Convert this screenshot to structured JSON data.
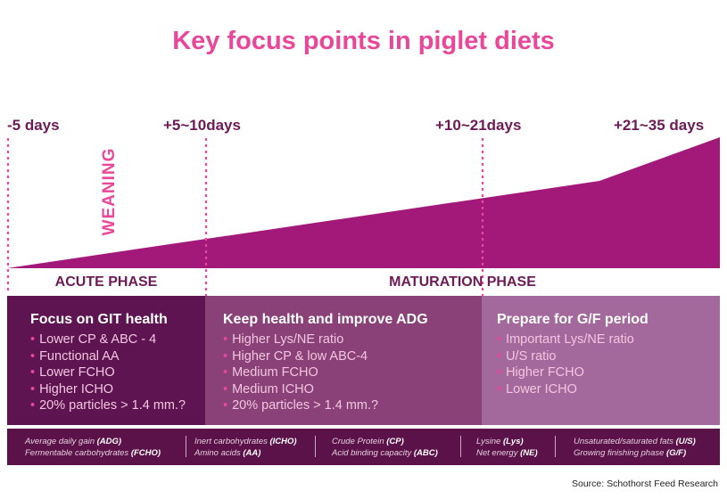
{
  "title": "Key focus points in piglet diets",
  "timeline": [
    "-5 days",
    "+5~10days",
    "+10~21days",
    "+21~35 days"
  ],
  "weaning_label": "WEANING",
  "phases": {
    "acute": "ACUTE PHASE",
    "maturation": "MATURATION PHASE"
  },
  "columns": [
    {
      "heading": "Focus on GIT health",
      "items": [
        "Lower CP & ABC - 4",
        "Functional AA",
        "Lower FCHO",
        "Higher ICHO",
        "20% particles > 1.4 mm.?"
      ]
    },
    {
      "heading": "Keep health and improve ADG",
      "items": [
        "Higher Lys/NE ratio",
        "Higher CP & low ABC-4",
        "Medium FCHO",
        "Medium ICHO",
        "20% particles > 1.4 mm.?"
      ]
    },
    {
      "heading": "Prepare for G/F period",
      "items": [
        "Important Lys/NE ratio",
        "U/S ratio",
        "Higher FCHO",
        "Lower ICHO"
      ]
    }
  ],
  "legend": [
    {
      "t1": "Average daily gain",
      "a1": "(ADG)",
      "t2": "Fermentable carbohydrates",
      "a2": "(FCHO)"
    },
    {
      "t1": "Inert carbohydrates",
      "a1": "(ICHO)",
      "t2": "Amino acids",
      "a2": "(AA)"
    },
    {
      "t1": "Crude Protein",
      "a1": "(CP)",
      "t2": "Acid binding capacity",
      "a2": "(ABC)"
    },
    {
      "t1": "Lysine",
      "a1": "(Lys)",
      "t2": "Net energy",
      "a2": "(NE)"
    },
    {
      "t1": "Unsaturated/saturated fats",
      "a1": "(U/S)",
      "t2": "Growing finishing phase",
      "a2": "(G/F)"
    }
  ],
  "source": {
    "label": "Source:",
    "text": "Schothorst Feed Research"
  },
  "colors": {
    "title": "#e8479a",
    "dark": "#6d1a55",
    "wedge": "#a3197a",
    "col1": "#5e1450",
    "col2": "#894178",
    "col3": "#a3699c"
  }
}
